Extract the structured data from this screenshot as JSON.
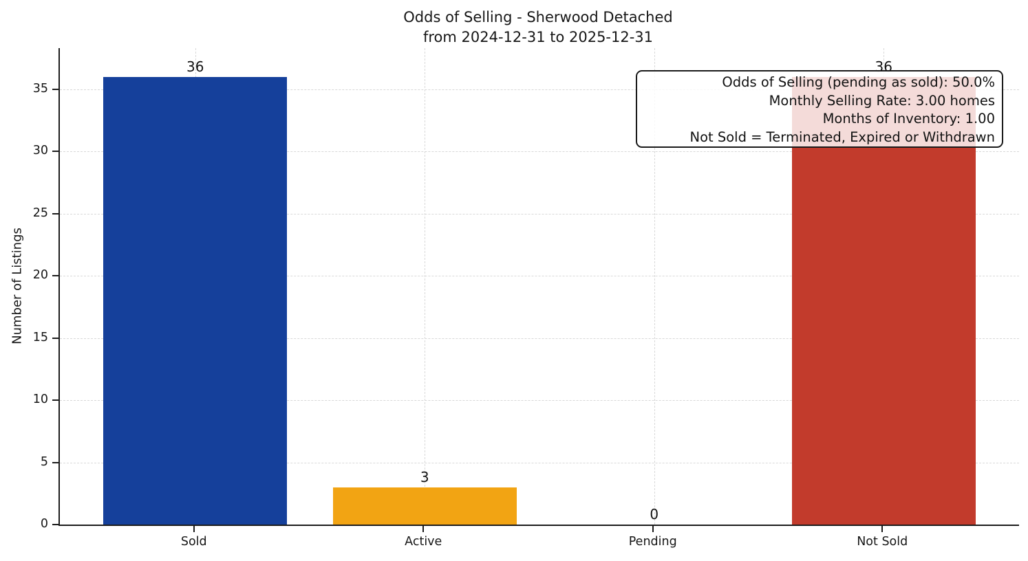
{
  "chart_data": {
    "type": "bar",
    "title": "Odds of Selling - Sherwood Detached",
    "subtitle": "from 2024-12-31 to 2025-12-31",
    "ylabel": "Number of Listings",
    "categories": [
      "Sold",
      "Active",
      "Pending",
      "Not Sold"
    ],
    "values": [
      36,
      3,
      0,
      36
    ],
    "bar_colors": [
      "#15409b",
      "#f2a413",
      "#999999",
      "#c23b2c"
    ],
    "yticks": [
      0,
      5,
      10,
      15,
      20,
      25,
      30,
      35
    ],
    "ylim": [
      0,
      38.3
    ],
    "xlim": [
      -0.59,
      3.59
    ],
    "bar_width": 0.8,
    "grid": "dashed",
    "grid_color": "#d8d8d8",
    "axis_color": "#1b1b1b",
    "annotations": [
      "Odds of Selling (pending as sold): 50.0%",
      "Monthly Selling Rate: 3.00 homes",
      "Months of Inventory: 1.00",
      "Not Sold = Terminated, Expired or Withdrawn"
    ]
  }
}
